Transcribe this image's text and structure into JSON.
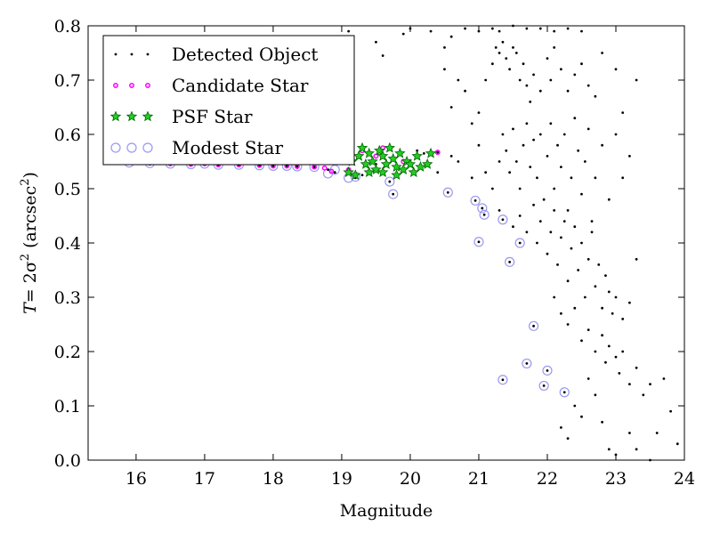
{
  "chart_data": {
    "type": "scatter",
    "xlabel": "Magnitude",
    "ylabel_prefix": "T",
    "ylabel_eq": "= 2σ",
    "ylabel_sup": "2",
    "ylabel_unit_open": " (arcsec",
    "ylabel_unit_sup": "2",
    "ylabel_unit_close": ")",
    "xlim": [
      15.3,
      24.0
    ],
    "ylim": [
      0.0,
      0.8
    ],
    "xticks": [
      16,
      17,
      18,
      19,
      20,
      21,
      22,
      23,
      24
    ],
    "yticks": [
      0.0,
      0.1,
      0.2,
      0.3,
      0.4,
      0.5,
      0.6,
      0.7,
      0.8
    ],
    "xtick_labels": [
      "16",
      "17",
      "18",
      "19",
      "20",
      "21",
      "22",
      "23",
      "24"
    ],
    "ytick_labels": [
      "0.0",
      "0.1",
      "0.2",
      "0.3",
      "0.4",
      "0.5",
      "0.6",
      "0.7",
      "0.8"
    ],
    "grid": false,
    "legend_position": "top-left",
    "colors": {
      "detected": "#000000",
      "candidate": "#ff00ff",
      "psf_fill": "#22cc22",
      "psf_edge": "#006600",
      "modest": "#9999ee"
    },
    "series": [
      {
        "name": "Detected Object",
        "marker": "dot",
        "points": [
          [
            15.9,
            0.548
          ],
          [
            16.2,
            0.547
          ],
          [
            16.5,
            0.546
          ],
          [
            16.8,
            0.545
          ],
          [
            17.0,
            0.546
          ],
          [
            17.2,
            0.544
          ],
          [
            17.5,
            0.544
          ],
          [
            17.8,
            0.543
          ],
          [
            18.0,
            0.542
          ],
          [
            18.2,
            0.542
          ],
          [
            18.35,
            0.541
          ],
          [
            18.6,
            0.54
          ],
          [
            18.8,
            0.535
          ],
          [
            18.9,
            0.53
          ],
          [
            19.0,
            0.555
          ],
          [
            19.1,
            0.535
          ],
          [
            19.2,
            0.52
          ],
          [
            19.3,
            0.525
          ],
          [
            19.5,
            0.545
          ],
          [
            19.7,
            0.513
          ],
          [
            19.75,
            0.49
          ],
          [
            20.1,
            0.57
          ],
          [
            20.2,
            0.565
          ],
          [
            20.4,
            0.567
          ],
          [
            20.55,
            0.493
          ],
          [
            20.95,
            0.478
          ],
          [
            21.0,
            0.402
          ],
          [
            21.05,
            0.464
          ],
          [
            21.08,
            0.452
          ],
          [
            21.35,
            0.443
          ],
          [
            21.45,
            0.365
          ],
          [
            21.6,
            0.4
          ],
          [
            21.8,
            0.247
          ],
          [
            21.7,
            0.178
          ],
          [
            21.95,
            0.137
          ],
          [
            22.0,
            0.165
          ],
          [
            21.35,
            0.148
          ],
          [
            22.25,
            0.125
          ],
          [
            19.1,
            0.79
          ],
          [
            19.5,
            0.77
          ],
          [
            19.6,
            0.745
          ],
          [
            19.9,
            0.785
          ],
          [
            20.0,
            0.795
          ],
          [
            20.3,
            0.79
          ],
          [
            20.5,
            0.76
          ],
          [
            20.6,
            0.78
          ],
          [
            20.8,
            0.795
          ],
          [
            21.0,
            0.79
          ],
          [
            21.2,
            0.795
          ],
          [
            21.3,
            0.79
          ],
          [
            21.5,
            0.8
          ],
          [
            21.7,
            0.795
          ],
          [
            21.9,
            0.795
          ],
          [
            22.1,
            0.79
          ],
          [
            22.3,
            0.795
          ],
          [
            22.5,
            0.79
          ],
          [
            20.5,
            0.72
          ],
          [
            20.7,
            0.7
          ],
          [
            20.6,
            0.65
          ],
          [
            20.8,
            0.68
          ],
          [
            20.9,
            0.62
          ],
          [
            21.0,
            0.64
          ],
          [
            21.1,
            0.7
          ],
          [
            21.2,
            0.73
          ],
          [
            21.25,
            0.76
          ],
          [
            21.3,
            0.75
          ],
          [
            21.35,
            0.77
          ],
          [
            21.4,
            0.74
          ],
          [
            21.45,
            0.72
          ],
          [
            21.5,
            0.76
          ],
          [
            21.55,
            0.75
          ],
          [
            21.6,
            0.7
          ],
          [
            21.65,
            0.73
          ],
          [
            21.7,
            0.69
          ],
          [
            21.75,
            0.66
          ],
          [
            21.8,
            0.71
          ],
          [
            21.9,
            0.68
          ],
          [
            22.0,
            0.74
          ],
          [
            22.05,
            0.7
          ],
          [
            22.1,
            0.76
          ],
          [
            22.2,
            0.72
          ],
          [
            22.3,
            0.68
          ],
          [
            22.4,
            0.71
          ],
          [
            22.5,
            0.73
          ],
          [
            22.6,
            0.69
          ],
          [
            22.7,
            0.67
          ],
          [
            22.8,
            0.75
          ],
          [
            23.0,
            0.72
          ],
          [
            23.3,
            0.7
          ],
          [
            23.1,
            0.64
          ],
          [
            20.4,
            0.53
          ],
          [
            20.6,
            0.56
          ],
          [
            20.7,
            0.55
          ],
          [
            20.9,
            0.52
          ],
          [
            21.0,
            0.58
          ],
          [
            21.1,
            0.53
          ],
          [
            21.2,
            0.5
          ],
          [
            21.3,
            0.55
          ],
          [
            21.35,
            0.6
          ],
          [
            21.4,
            0.57
          ],
          [
            21.45,
            0.53
          ],
          [
            21.5,
            0.61
          ],
          [
            21.55,
            0.55
          ],
          [
            21.6,
            0.5
          ],
          [
            21.65,
            0.58
          ],
          [
            21.7,
            0.62
          ],
          [
            21.75,
            0.54
          ],
          [
            21.8,
            0.59
          ],
          [
            21.85,
            0.52
          ],
          [
            21.9,
            0.6
          ],
          [
            21.95,
            0.48
          ],
          [
            22.0,
            0.56
          ],
          [
            22.05,
            0.62
          ],
          [
            22.1,
            0.5
          ],
          [
            22.15,
            0.58
          ],
          [
            22.2,
            0.54
          ],
          [
            22.25,
            0.6
          ],
          [
            22.3,
            0.46
          ],
          [
            22.35,
            0.52
          ],
          [
            22.4,
            0.63
          ],
          [
            22.45,
            0.57
          ],
          [
            22.5,
            0.49
          ],
          [
            22.55,
            0.55
          ],
          [
            22.6,
            0.61
          ],
          [
            22.65,
            0.44
          ],
          [
            22.7,
            0.52
          ],
          [
            22.8,
            0.58
          ],
          [
            22.9,
            0.48
          ],
          [
            23.0,
            0.6
          ],
          [
            23.1,
            0.52
          ],
          [
            23.2,
            0.56
          ],
          [
            21.3,
            0.46
          ],
          [
            21.5,
            0.43
          ],
          [
            21.6,
            0.45
          ],
          [
            21.7,
            0.42
          ],
          [
            21.8,
            0.47
          ],
          [
            21.85,
            0.4
          ],
          [
            21.9,
            0.44
          ],
          [
            22.0,
            0.38
          ],
          [
            22.05,
            0.42
          ],
          [
            22.1,
            0.46
          ],
          [
            22.15,
            0.36
          ],
          [
            22.2,
            0.41
          ],
          [
            22.25,
            0.44
          ],
          [
            22.3,
            0.33
          ],
          [
            22.35,
            0.39
          ],
          [
            22.4,
            0.43
          ],
          [
            22.45,
            0.35
          ],
          [
            22.5,
            0.4
          ],
          [
            22.55,
            0.3
          ],
          [
            22.6,
            0.37
          ],
          [
            22.65,
            0.42
          ],
          [
            22.7,
            0.32
          ],
          [
            22.75,
            0.36
          ],
          [
            22.8,
            0.28
          ],
          [
            22.85,
            0.34
          ],
          [
            22.9,
            0.31
          ],
          [
            22.95,
            0.27
          ],
          [
            23.0,
            0.3
          ],
          [
            23.1,
            0.26
          ],
          [
            23.2,
            0.29
          ],
          [
            23.3,
            0.37
          ],
          [
            22.1,
            0.3
          ],
          [
            22.2,
            0.27
          ],
          [
            22.3,
            0.25
          ],
          [
            22.4,
            0.28
          ],
          [
            22.5,
            0.22
          ],
          [
            22.6,
            0.24
          ],
          [
            22.7,
            0.2
          ],
          [
            22.8,
            0.23
          ],
          [
            22.85,
            0.18
          ],
          [
            22.9,
            0.21
          ],
          [
            23.0,
            0.19
          ],
          [
            23.05,
            0.16
          ],
          [
            23.1,
            0.2
          ],
          [
            23.2,
            0.14
          ],
          [
            23.3,
            0.17
          ],
          [
            23.4,
            0.12
          ],
          [
            22.6,
            0.15
          ],
          [
            22.7,
            0.12
          ],
          [
            22.4,
            0.1
          ],
          [
            22.5,
            0.08
          ],
          [
            22.2,
            0.06
          ],
          [
            22.3,
            0.04
          ],
          [
            22.8,
            0.07
          ],
          [
            22.9,
            0.02
          ],
          [
            23.0,
            0.01
          ],
          [
            23.2,
            0.05
          ],
          [
            23.3,
            0.02
          ],
          [
            23.5,
            0.14
          ],
          [
            23.6,
            0.05
          ],
          [
            23.7,
            0.15
          ],
          [
            23.8,
            0.09
          ],
          [
            23.9,
            0.03
          ],
          [
            23.5,
            0.0
          ]
        ]
      },
      {
        "name": "Candidate Star",
        "marker": "small-circle",
        "points": [
          [
            15.9,
            0.548
          ],
          [
            16.2,
            0.547
          ],
          [
            16.5,
            0.546
          ],
          [
            16.8,
            0.545
          ],
          [
            17.0,
            0.546
          ],
          [
            17.2,
            0.544
          ],
          [
            17.5,
            0.544
          ],
          [
            17.8,
            0.543
          ],
          [
            18.0,
            0.542
          ],
          [
            18.2,
            0.542
          ],
          [
            18.35,
            0.541
          ],
          [
            18.6,
            0.54
          ],
          [
            18.75,
            0.538
          ],
          [
            18.85,
            0.532
          ],
          [
            18.95,
            0.55
          ],
          [
            19.1,
            0.535
          ],
          [
            19.3,
            0.57
          ],
          [
            19.5,
            0.56
          ],
          [
            19.6,
            0.575
          ],
          [
            19.9,
            0.55
          ],
          [
            20.4,
            0.567
          ]
        ]
      },
      {
        "name": "PSF Star",
        "marker": "star",
        "points": [
          [
            19.1,
            0.53
          ],
          [
            19.15,
            0.55
          ],
          [
            19.2,
            0.525
          ],
          [
            19.25,
            0.56
          ],
          [
            19.3,
            0.575
          ],
          [
            19.35,
            0.545
          ],
          [
            19.4,
            0.565
          ],
          [
            19.45,
            0.55
          ],
          [
            19.5,
            0.535
          ],
          [
            19.55,
            0.57
          ],
          [
            19.6,
            0.56
          ],
          [
            19.65,
            0.545
          ],
          [
            19.7,
            0.575
          ],
          [
            19.75,
            0.555
          ],
          [
            19.8,
            0.54
          ],
          [
            19.85,
            0.565
          ],
          [
            19.9,
            0.535
          ],
          [
            19.95,
            0.55
          ],
          [
            20.0,
            0.545
          ],
          [
            20.05,
            0.53
          ],
          [
            20.1,
            0.56
          ],
          [
            20.15,
            0.54
          ],
          [
            20.3,
            0.565
          ],
          [
            20.25,
            0.545
          ],
          [
            19.4,
            0.53
          ],
          [
            19.6,
            0.53
          ],
          [
            19.8,
            0.525
          ]
        ]
      },
      {
        "name": "Modest Star",
        "marker": "open-circle",
        "points": [
          [
            15.9,
            0.548
          ],
          [
            16.2,
            0.547
          ],
          [
            16.5,
            0.546
          ],
          [
            16.8,
            0.545
          ],
          [
            17.0,
            0.546
          ],
          [
            17.2,
            0.544
          ],
          [
            17.5,
            0.544
          ],
          [
            17.8,
            0.543
          ],
          [
            18.0,
            0.542
          ],
          [
            18.2,
            0.542
          ],
          [
            18.35,
            0.541
          ],
          [
            18.6,
            0.54
          ],
          [
            18.8,
            0.528
          ],
          [
            18.9,
            0.535
          ],
          [
            19.1,
            0.52
          ],
          [
            19.2,
            0.522
          ],
          [
            19.7,
            0.513
          ],
          [
            19.75,
            0.49
          ],
          [
            20.55,
            0.493
          ],
          [
            20.95,
            0.478
          ],
          [
            21.0,
            0.402
          ],
          [
            21.05,
            0.464
          ],
          [
            21.08,
            0.452
          ],
          [
            21.35,
            0.443
          ],
          [
            21.45,
            0.365
          ],
          [
            21.6,
            0.4
          ],
          [
            21.8,
            0.247
          ],
          [
            21.7,
            0.178
          ],
          [
            21.95,
            0.137
          ],
          [
            22.0,
            0.165
          ],
          [
            21.35,
            0.148
          ],
          [
            22.25,
            0.125
          ]
        ]
      }
    ]
  }
}
